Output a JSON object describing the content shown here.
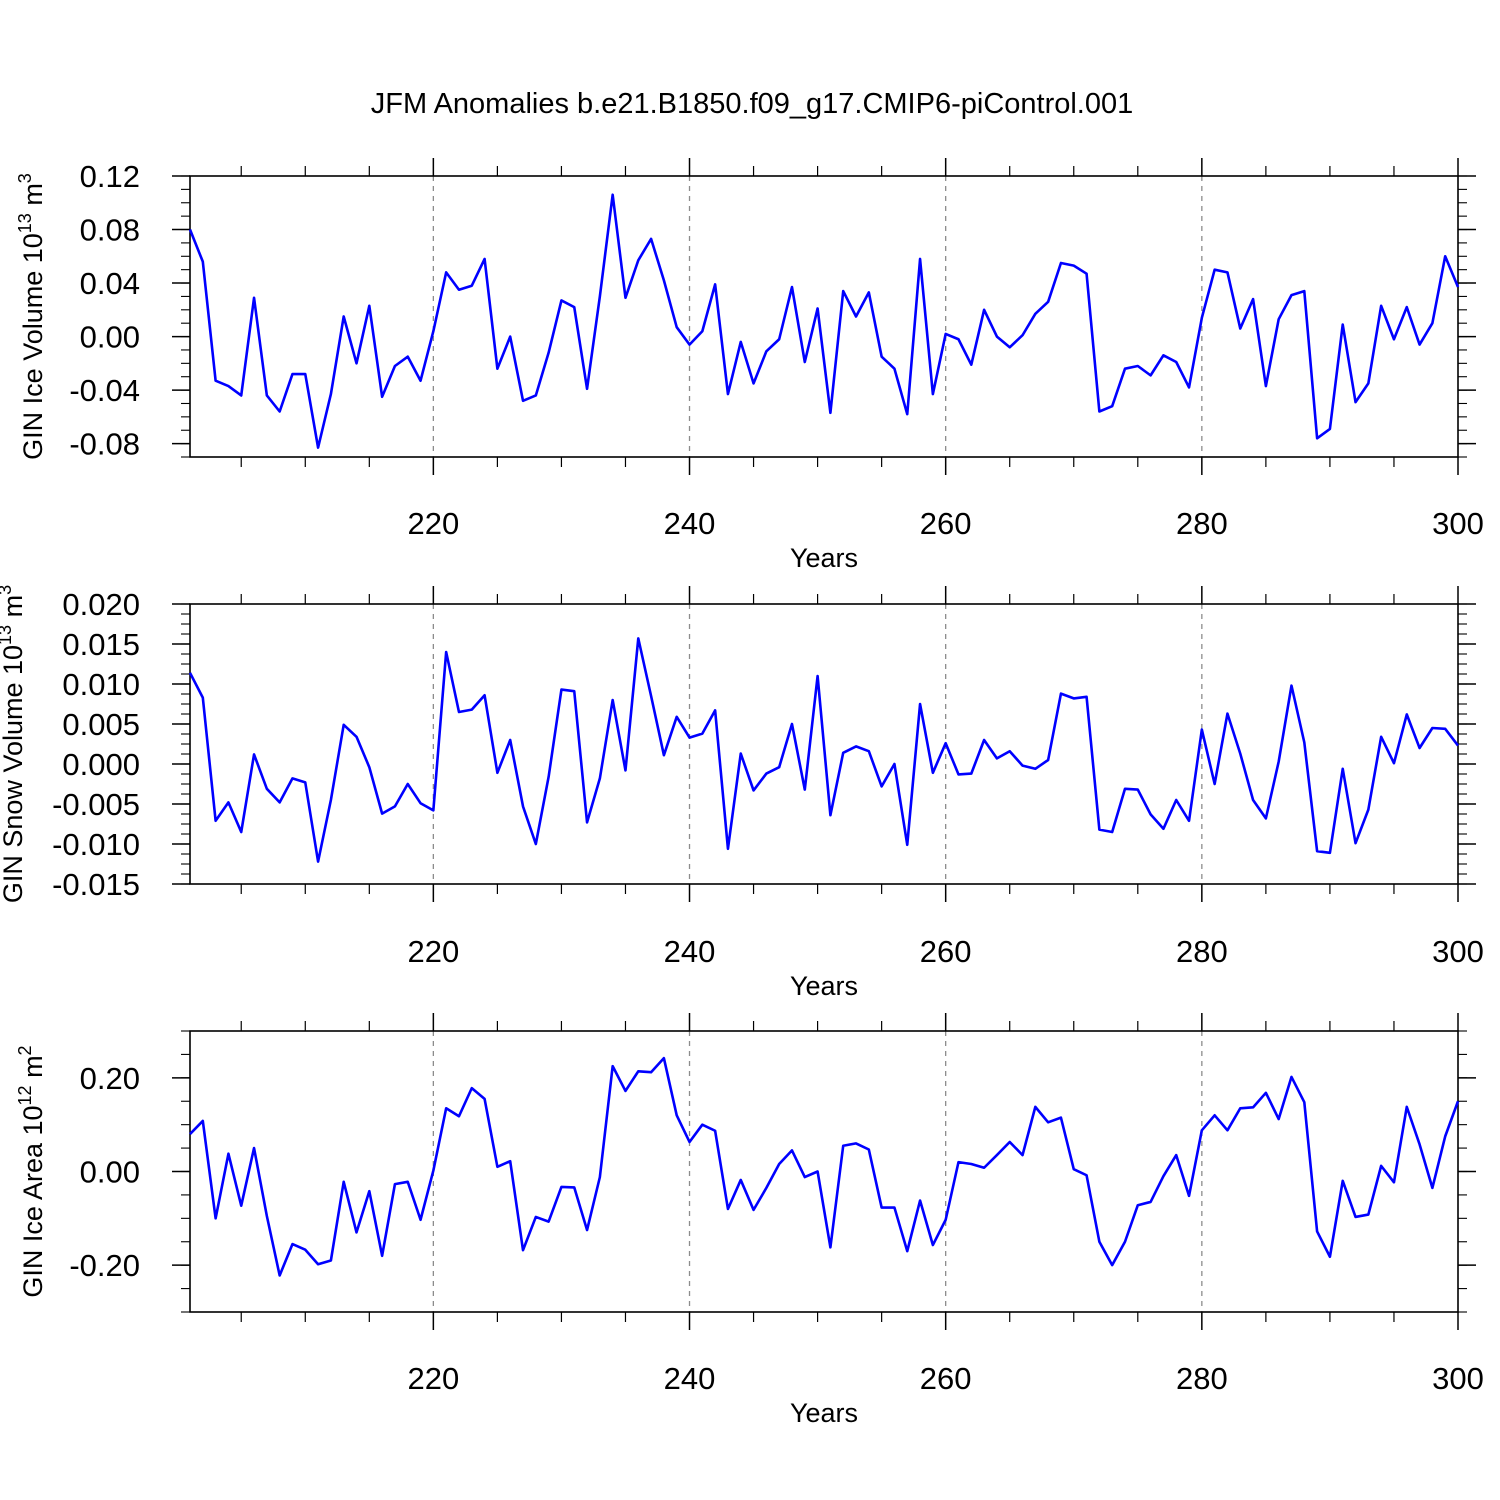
{
  "figure_title": "JFM Anomalies b.e21.B1850.f09_g17.CMIP6-piControl.001",
  "line_color": "#0000ff",
  "chart_data": [
    {
      "type": "line",
      "title": "JFM Anomalies b.e21.B1850.f09_g17.CMIP6-piControl.001",
      "xlabel": "Years",
      "ylabel_main": "GIN Ice Volume 10",
      "ylabel_exp": "13",
      "ylabel_unit": " m",
      "ylabel_unit_exp": "3",
      "xlim": [
        201,
        300
      ],
      "ylim": [
        -0.09,
        0.12
      ],
      "yticks": [
        -0.08,
        -0.04,
        0.0,
        0.04,
        0.08,
        0.12
      ],
      "ytick_labels": [
        "-0.08",
        "-0.04",
        "0.00",
        "0.04",
        "0.08",
        "0.12"
      ],
      "xticks": [
        220,
        240,
        260,
        280,
        300
      ],
      "xtick_labels": [
        "220",
        "240",
        "260",
        "280",
        "300"
      ],
      "start_year": 201,
      "values": [
        0.08,
        0.056,
        -0.033,
        -0.037,
        -0.044,
        0.029,
        -0.044,
        -0.056,
        -0.028,
        -0.028,
        -0.083,
        -0.043,
        0.015,
        -0.02,
        0.023,
        -0.045,
        -0.022,
        -0.015,
        -0.033,
        0.004,
        0.048,
        0.035,
        0.038,
        0.058,
        -0.024,
        0.0,
        -0.048,
        -0.044,
        -0.012,
        0.027,
        0.022,
        -0.039,
        0.03,
        0.106,
        0.029,
        0.057,
        0.073,
        0.042,
        0.007,
        -0.006,
        0.004,
        0.039,
        -0.043,
        -0.004,
        -0.035,
        -0.011,
        -0.002,
        0.037,
        -0.019,
        0.021,
        -0.057,
        0.034,
        0.015,
        0.033,
        -0.015,
        -0.024,
        -0.058,
        0.058,
        -0.043,
        0.002,
        -0.002,
        -0.021,
        0.02,
        0.0,
        -0.008,
        0.001,
        0.017,
        0.026,
        0.055,
        0.053,
        0.047,
        -0.056,
        -0.052,
        -0.024,
        -0.022,
        -0.029,
        -0.014,
        -0.019,
        -0.038,
        0.014,
        0.05,
        0.048,
        0.006,
        0.028,
        -0.037,
        0.013,
        0.031,
        0.034,
        -0.076,
        -0.069,
        0.009,
        -0.049,
        -0.035,
        0.023,
        -0.002,
        0.022,
        -0.006,
        0.01,
        0.06,
        0.037
      ]
    },
    {
      "type": "line",
      "xlabel": "Years",
      "ylabel_main": "GIN Snow Volume 10",
      "ylabel_exp": "13",
      "ylabel_unit": " m",
      "ylabel_unit_exp": "3",
      "xlim": [
        201,
        300
      ],
      "ylim": [
        -0.015,
        0.02
      ],
      "yticks": [
        -0.015,
        -0.01,
        -0.005,
        0.0,
        0.005,
        0.01,
        0.015,
        0.02
      ],
      "ytick_labels": [
        "-0.015",
        "-0.010",
        "-0.005",
        "0.000",
        "0.005",
        "0.010",
        "0.015",
        "0.020"
      ],
      "xticks": [
        220,
        240,
        260,
        280,
        300
      ],
      "xtick_labels": [
        "220",
        "240",
        "260",
        "280",
        "300"
      ],
      "start_year": 201,
      "values": [
        0.0114,
        0.0083,
        -0.0071,
        -0.0048,
        -0.0085,
        0.0012,
        -0.0031,
        -0.0048,
        -0.0018,
        -0.0023,
        -0.0122,
        -0.0045,
        0.0049,
        0.0034,
        -0.0004,
        -0.0062,
        -0.0053,
        -0.0025,
        -0.0049,
        -0.0058,
        0.014,
        0.0065,
        0.0068,
        0.0086,
        -0.0011,
        0.003,
        -0.0053,
        -0.01,
        -0.0016,
        0.0093,
        0.0091,
        -0.0073,
        -0.0018,
        0.008,
        -0.0008,
        0.0157,
        0.0085,
        0.0011,
        0.0059,
        0.0033,
        0.0038,
        0.0067,
        -0.0106,
        0.0013,
        -0.0033,
        -0.0012,
        -0.0004,
        0.005,
        -0.0032,
        0.011,
        -0.0064,
        0.0014,
        0.0022,
        0.0016,
        -0.0028,
        0.0,
        -0.0101,
        0.0075,
        -0.0011,
        0.0026,
        -0.0013,
        -0.0012,
        0.003,
        0.0007,
        0.0016,
        -0.0002,
        -0.0006,
        0.0005,
        0.0088,
        0.0082,
        0.0084,
        -0.0082,
        -0.0085,
        -0.0031,
        -0.0032,
        -0.0063,
        -0.0081,
        -0.0045,
        -0.0071,
        0.0043,
        -0.0025,
        0.0063,
        0.0013,
        -0.0045,
        -0.0068,
        0.0003,
        0.0098,
        0.0027,
        -0.0109,
        -0.0111,
        -0.0006,
        -0.0099,
        -0.0057,
        0.0034,
        0.0001,
        0.0062,
        0.002,
        0.0045,
        0.0044,
        0.0023
      ]
    },
    {
      "type": "line",
      "xlabel": "Years",
      "ylabel_main": "GIN Ice Area 10",
      "ylabel_exp": "12",
      "ylabel_unit": " m",
      "ylabel_unit_exp": "2",
      "xlim": [
        201,
        300
      ],
      "ylim": [
        -0.3,
        0.3
      ],
      "yticks": [
        -0.2,
        0.0,
        0.2
      ],
      "ytick_labels": [
        "-0.20",
        "0.00",
        "0.20"
      ],
      "xticks": [
        220,
        240,
        260,
        280,
        300
      ],
      "xtick_labels": [
        "220",
        "240",
        "260",
        "280",
        "300"
      ],
      "start_year": 201,
      "values": [
        0.08,
        0.108,
        -0.1,
        0.038,
        -0.073,
        0.05,
        -0.095,
        -0.222,
        -0.155,
        -0.167,
        -0.198,
        -0.19,
        -0.022,
        -0.13,
        -0.042,
        -0.18,
        -0.027,
        -0.022,
        -0.103,
        0.002,
        0.135,
        0.118,
        0.178,
        0.155,
        0.01,
        0.022,
        -0.168,
        -0.097,
        -0.107,
        -0.033,
        -0.034,
        -0.125,
        -0.012,
        0.225,
        0.172,
        0.214,
        0.212,
        0.242,
        0.12,
        0.063,
        0.1,
        0.087,
        -0.08,
        -0.018,
        -0.082,
        -0.035,
        0.016,
        0.045,
        -0.012,
        0.0,
        -0.162,
        0.055,
        0.06,
        0.047,
        -0.077,
        -0.077,
        -0.17,
        -0.062,
        -0.157,
        -0.103,
        0.02,
        0.016,
        0.008,
        0.035,
        0.063,
        0.035,
        0.138,
        0.105,
        0.115,
        0.005,
        -0.008,
        -0.15,
        -0.2,
        -0.15,
        -0.072,
        -0.065,
        -0.01,
        0.035,
        -0.052,
        0.088,
        0.12,
        0.088,
        0.135,
        0.137,
        0.168,
        0.112,
        0.202,
        0.148,
        -0.128,
        -0.182,
        -0.02,
        -0.097,
        -0.092,
        0.012,
        -0.023,
        0.138,
        0.058,
        -0.035,
        0.075,
        0.15
      ]
    }
  ]
}
